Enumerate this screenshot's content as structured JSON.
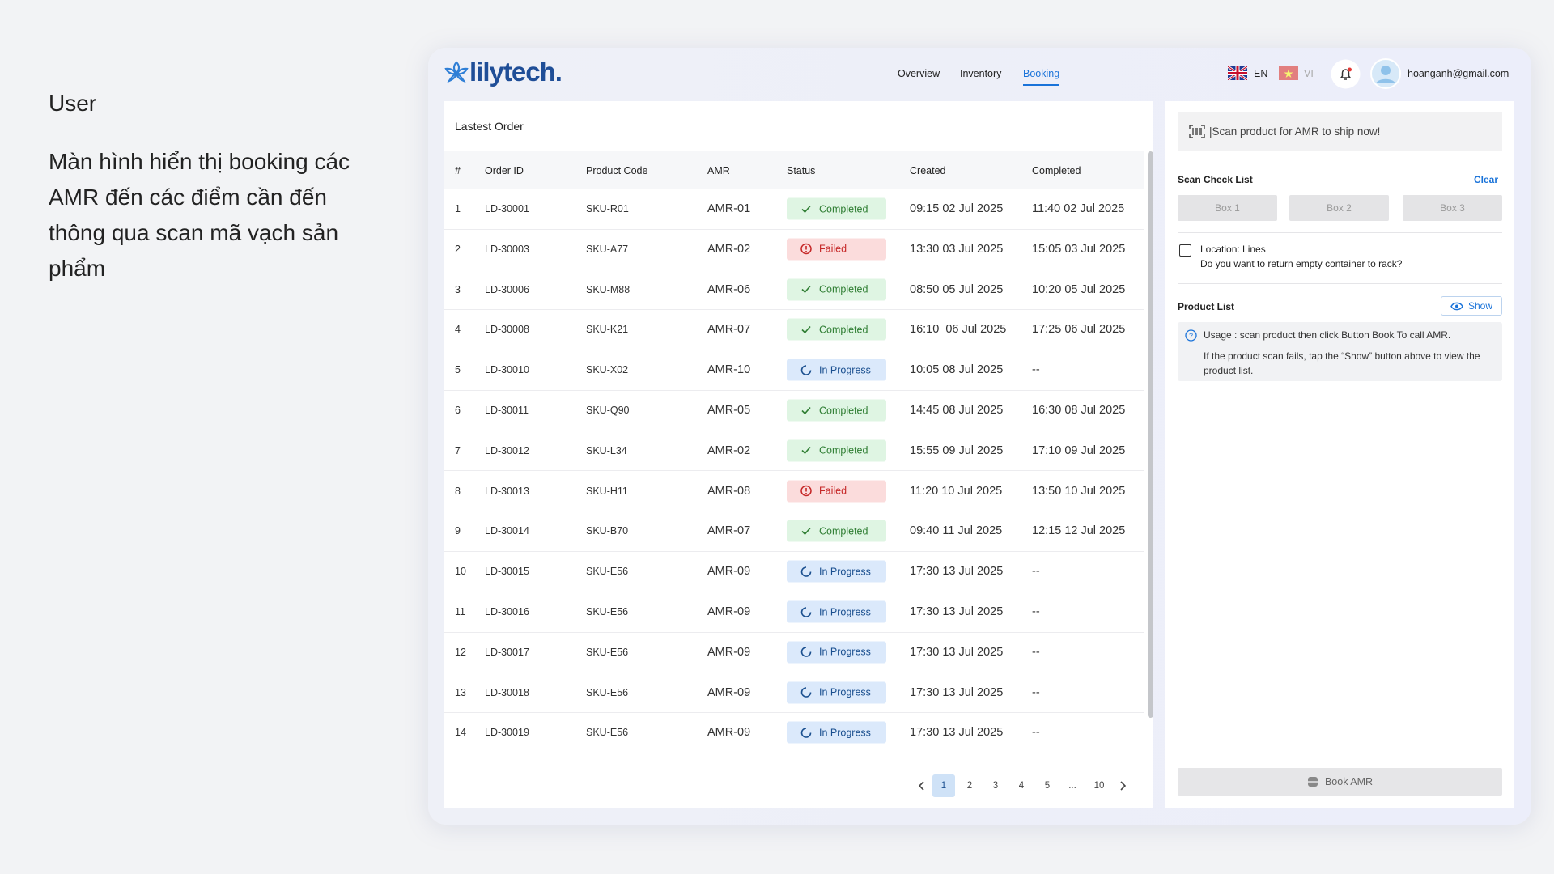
{
  "side": {
    "heading": "User",
    "description_lines": [
      "Màn hình hiển thị booking các",
      "AMR đến các điểm cần đến",
      "thông qua scan mã vạch sản",
      "phẩm"
    ]
  },
  "header": {
    "logo": "lilytech.",
    "nav": [
      {
        "label": "Overview",
        "active": false
      },
      {
        "label": "Inventory",
        "active": false
      },
      {
        "label": "Booking",
        "active": true
      }
    ],
    "languages": [
      "EN",
      "VI"
    ],
    "email": "hoanganh@gmail.com"
  },
  "orders": {
    "title": "Lastest Order",
    "columns": [
      "#",
      "Order ID",
      "Product Code",
      "AMR",
      "Status",
      "Created",
      "Completed"
    ],
    "rows": [
      [
        "1",
        "LD-30001",
        "SKU-R01",
        "AMR-01",
        "Completed",
        "09:15 02 Jul 2025",
        "11:40 02 Jul 2025"
      ],
      [
        "2",
        "LD-30003",
        "SKU-A77",
        "AMR-02",
        "Failed",
        "13:30 03 Jul 2025",
        "15:05 03 Jul 2025"
      ],
      [
        "3",
        "LD-30006",
        "SKU-M88",
        "AMR-06",
        "Completed",
        "08:50 05 Jul 2025",
        "10:20 05 Jul 2025"
      ],
      [
        "4",
        "LD-30008",
        "SKU-K21",
        "AMR-07",
        "Completed",
        "16:10  06 Jul 2025",
        "17:25 06 Jul 2025"
      ],
      [
        "5",
        "LD-30010",
        "SKU-X02",
        "AMR-10",
        "In Progress",
        "10:05 08 Jul 2025",
        "--"
      ],
      [
        "6",
        "LD-30011",
        "SKU-Q90",
        "AMR-05",
        "Completed",
        "14:45 08 Jul 2025",
        "16:30 08 Jul 2025"
      ],
      [
        "7",
        "LD-30012",
        "SKU-L34",
        "AMR-02",
        "Completed",
        "15:55 09 Jul 2025",
        "17:10 09 Jul 2025"
      ],
      [
        "8",
        "LD-30013",
        "SKU-H11",
        "AMR-08",
        "Failed",
        "11:20 10 Jul 2025",
        "13:50 10 Jul 2025"
      ],
      [
        "9",
        "LD-30014",
        "SKU-B70",
        "AMR-07",
        "Completed",
        "09:40 11 Jul 2025",
        "12:15 12 Jul 2025"
      ],
      [
        "10",
        "LD-30015",
        "SKU-E56",
        "AMR-09",
        "In Progress",
        "17:30 13 Jul 2025",
        "--"
      ],
      [
        "11",
        "LD-30016",
        "SKU-E56",
        "AMR-09",
        "In Progress",
        "17:30 13 Jul 2025",
        "--"
      ],
      [
        "12",
        "LD-30017",
        "SKU-E56",
        "AMR-09",
        "In Progress",
        "17:30 13 Jul 2025",
        "--"
      ],
      [
        "13",
        "LD-30018",
        "SKU-E56",
        "AMR-09",
        "In Progress",
        "17:30 13 Jul 2025",
        "--"
      ],
      [
        "14",
        "LD-30019",
        "SKU-E56",
        "AMR-09",
        "In Progress",
        "17:30 13 Jul 2025",
        "--"
      ]
    ],
    "pagination": [
      {
        "label": "1",
        "current": true
      },
      {
        "label": "2",
        "current": false
      },
      {
        "label": "3",
        "current": false
      },
      {
        "label": "4",
        "current": false
      },
      {
        "label": "5",
        "current": false
      },
      {
        "label": "...",
        "current": false
      },
      {
        "label": "10",
        "current": false
      }
    ]
  },
  "scan_panel": {
    "placeholder": "|Scan product for AMR to ship now!",
    "check_list_title": "Scan Check List",
    "clear": "Clear",
    "boxes": [
      "Box 1",
      "Box 2",
      "Box 3"
    ],
    "location_label": "Location: Lines",
    "location_question": "Do you want to return empty container to rack?",
    "product_list_title": "Product List",
    "show_button": "Show",
    "usage_lines": [
      "Usage : scan product then click Button Book To call AMR.",
      "If the product scan fails, tap the “Show” button above to view the product list."
    ],
    "book_button": "Book AMR"
  }
}
